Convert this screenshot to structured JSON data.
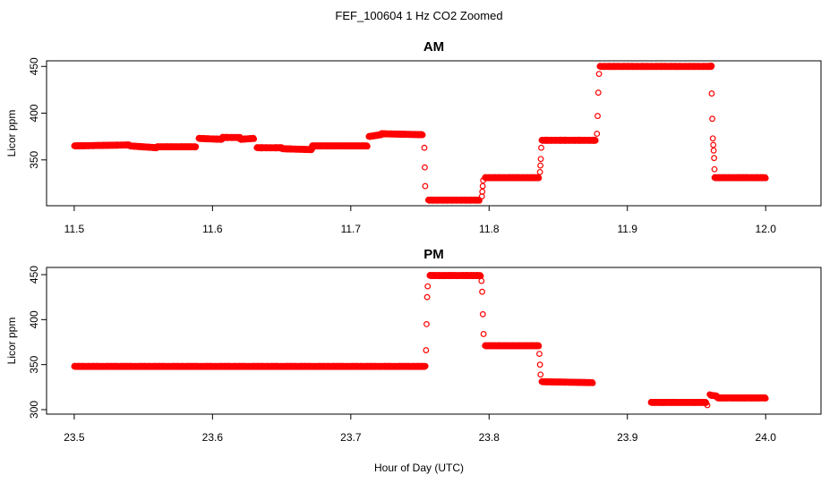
{
  "title": "FEF_100604  1 Hz CO2 Zoomed",
  "xlabel": "Hour of Day (UTC)",
  "chart_data": [
    {
      "type": "scatter",
      "title": "AM",
      "ylabel": "Licor ppm",
      "xlim": [
        11.48,
        12.04
      ],
      "ylim": [
        301,
        456
      ],
      "xticks": [
        11.5,
        11.6,
        11.7,
        11.8,
        11.9,
        12.0
      ],
      "xtick_labels": [
        "11.5",
        "11.6",
        "11.7",
        "11.8",
        "11.9",
        "12.0"
      ],
      "yticks": [
        350,
        400,
        450
      ],
      "ytick_labels": [
        "350",
        "400",
        "450"
      ],
      "color": "#ff0000",
      "marker": "open-circle",
      "segments": [
        {
          "x": [
            11.5,
            11.54
          ],
          "y": [
            365,
            366
          ]
        },
        {
          "x": [
            11.54,
            11.56
          ],
          "y": [
            365,
            363
          ]
        },
        {
          "x": [
            11.56,
            11.588
          ],
          "y": [
            364,
            364
          ]
        },
        {
          "x": [
            11.59,
            11.607
          ],
          "y": [
            373,
            372
          ]
        },
        {
          "x": [
            11.607,
            11.62
          ],
          "y": [
            374,
            374
          ]
        },
        {
          "x": [
            11.62,
            11.63
          ],
          "y": [
            372,
            373
          ]
        },
        {
          "x": [
            11.632,
            11.65
          ],
          "y": [
            363,
            363
          ]
        },
        {
          "x": [
            11.65,
            11.672
          ],
          "y": [
            362,
            361
          ]
        },
        {
          "x": [
            11.672,
            11.712
          ],
          "y": [
            365,
            365
          ]
        },
        {
          "x": [
            11.713,
            11.722
          ],
          "y": [
            375,
            377
          ]
        },
        {
          "x": [
            11.722,
            11.752
          ],
          "y": [
            378,
            377
          ]
        },
        {
          "x": [
            11.756,
            11.793
          ],
          "y": [
            307,
            307
          ]
        },
        {
          "x": [
            11.797,
            11.836
          ],
          "y": [
            331,
            331
          ]
        },
        {
          "x": [
            11.838,
            11.877
          ],
          "y": [
            371,
            371
          ]
        },
        {
          "x": [
            11.88,
            11.961
          ],
          "y": [
            450,
            450
          ]
        },
        {
          "x": [
            11.963,
            12.0
          ],
          "y": [
            331,
            331
          ]
        }
      ],
      "transition_points": [
        {
          "x": 11.7532,
          "y": 363
        },
        {
          "x": 11.7535,
          "y": 342
        },
        {
          "x": 11.7538,
          "y": 322
        },
        {
          "x": 11.7948,
          "y": 311
        },
        {
          "x": 11.7951,
          "y": 316
        },
        {
          "x": 11.7954,
          "y": 322
        },
        {
          "x": 11.7957,
          "y": 328
        },
        {
          "x": 11.8368,
          "y": 337
        },
        {
          "x": 11.8371,
          "y": 344
        },
        {
          "x": 11.8374,
          "y": 351
        },
        {
          "x": 11.8377,
          "y": 363
        },
        {
          "x": 11.878,
          "y": 378
        },
        {
          "x": 11.8785,
          "y": 397
        },
        {
          "x": 11.879,
          "y": 422
        },
        {
          "x": 11.8795,
          "y": 442
        },
        {
          "x": 11.9605,
          "y": 451
        },
        {
          "x": 11.961,
          "y": 421
        },
        {
          "x": 11.9614,
          "y": 394
        },
        {
          "x": 11.9618,
          "y": 373
        },
        {
          "x": 11.9621,
          "y": 366
        },
        {
          "x": 11.9624,
          "y": 360
        },
        {
          "x": 11.9627,
          "y": 352
        },
        {
          "x": 11.963,
          "y": 340
        }
      ]
    },
    {
      "type": "scatter",
      "title": "PM",
      "ylabel": "Licor ppm",
      "xlim": [
        23.48,
        24.04
      ],
      "ylim": [
        295,
        458
      ],
      "xticks": [
        23.5,
        23.6,
        23.7,
        23.8,
        23.9,
        24.0
      ],
      "xtick_labels": [
        "23.5",
        "23.6",
        "23.7",
        "23.8",
        "23.9",
        "24.0"
      ],
      "yticks": [
        300,
        350,
        400,
        450
      ],
      "ytick_labels": [
        "300",
        "350",
        "400",
        "450"
      ],
      "color": "#ff0000",
      "marker": "open-circle",
      "segments": [
        {
          "x": [
            23.5,
            23.754
          ],
          "y": [
            348,
            348
          ]
        },
        {
          "x": [
            23.757,
            23.794
          ],
          "y": [
            449,
            449
          ]
        },
        {
          "x": [
            23.797,
            23.836
          ],
          "y": [
            371,
            371
          ]
        },
        {
          "x": [
            23.838,
            23.875
          ],
          "y": [
            331,
            330
          ]
        },
        {
          "x": [
            23.917,
            23.957
          ],
          "y": [
            308,
            308
          ]
        },
        {
          "x": [
            23.96,
            23.965
          ],
          "y": [
            316,
            315
          ]
        },
        {
          "x": [
            23.965,
            24.0
          ],
          "y": [
            313,
            313
          ]
        }
      ],
      "transition_points": [
        {
          "x": 23.7544,
          "y": 366
        },
        {
          "x": 23.7548,
          "y": 395
        },
        {
          "x": 23.7552,
          "y": 425
        },
        {
          "x": 23.7556,
          "y": 437
        },
        {
          "x": 23.7945,
          "y": 443
        },
        {
          "x": 23.795,
          "y": 431
        },
        {
          "x": 23.7955,
          "y": 406
        },
        {
          "x": 23.796,
          "y": 384
        },
        {
          "x": 23.8364,
          "y": 362
        },
        {
          "x": 23.8368,
          "y": 350
        },
        {
          "x": 23.8372,
          "y": 339
        },
        {
          "x": 23.9578,
          "y": 305
        },
        {
          "x": 23.9595,
          "y": 317
        }
      ]
    }
  ]
}
